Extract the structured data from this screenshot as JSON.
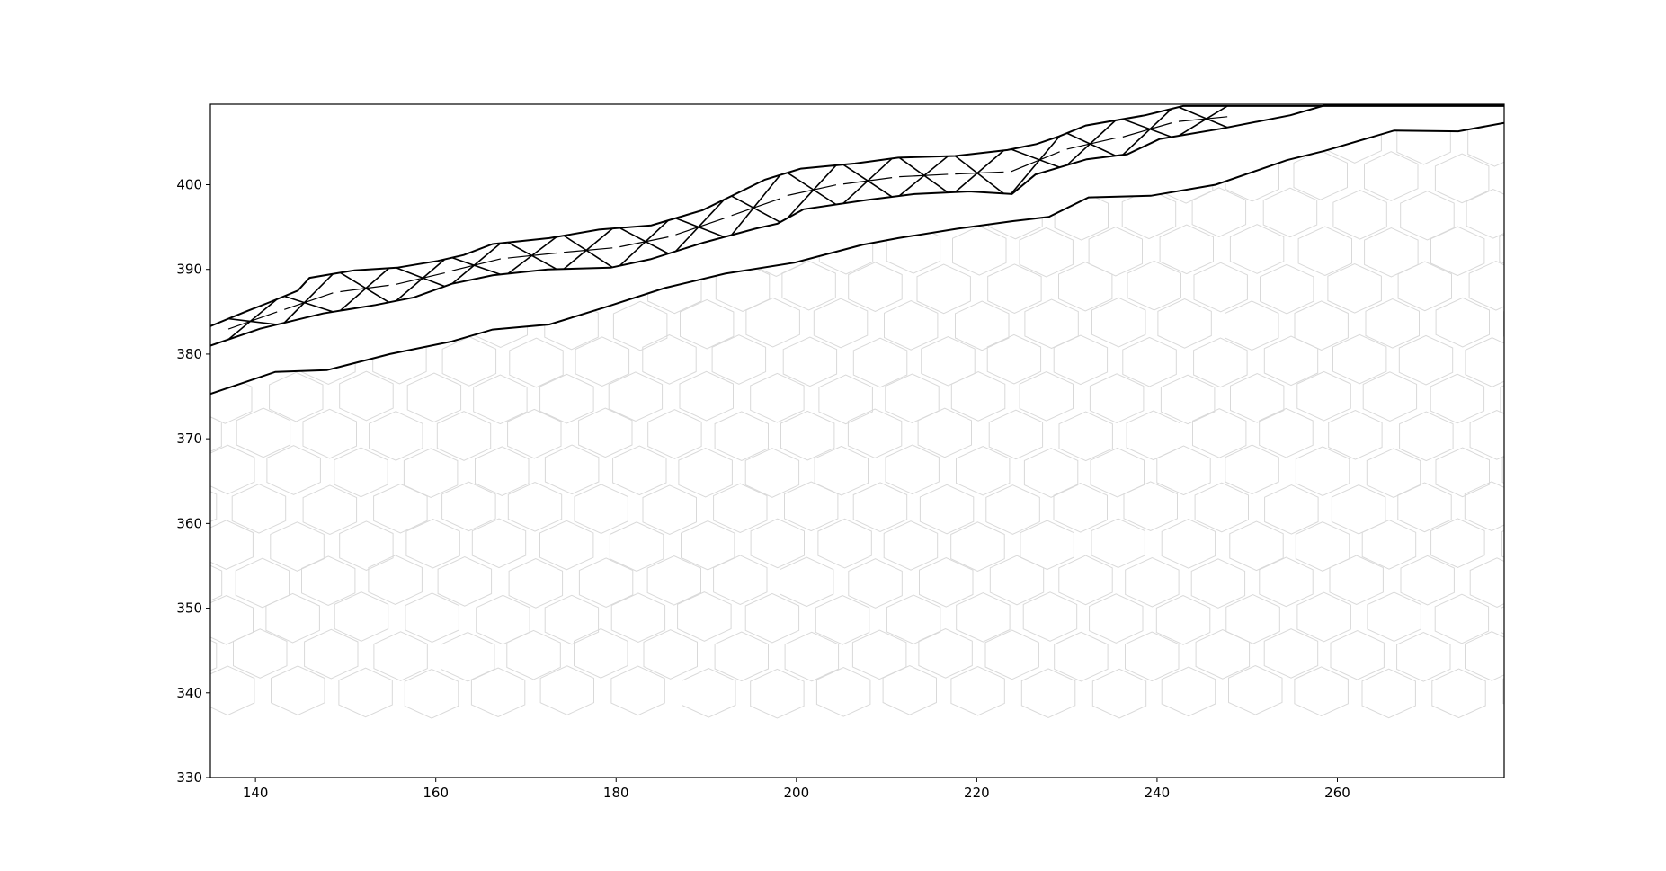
{
  "chart_data": {
    "type": "line",
    "title": "",
    "xlabel": "",
    "ylabel": "",
    "xlim": [
      135,
      278.5
    ],
    "ylim": [
      330,
      409.5
    ],
    "x_ticks": [
      140,
      160,
      180,
      200,
      220,
      240,
      260
    ],
    "y_ticks": [
      330,
      340,
      350,
      360,
      370,
      380,
      390,
      400
    ],
    "x_tick_labels": [
      "140",
      "160",
      "180",
      "200",
      "220",
      "240",
      "260"
    ],
    "y_tick_labels": [
      "330",
      "340",
      "350",
      "360",
      "370",
      "380",
      "390",
      "400"
    ],
    "grid": false,
    "legend": "none",
    "background_mesh": "hexagonal",
    "colors": {
      "lines": "#000000",
      "mesh": "#d9d9d9",
      "axes": "#000000"
    },
    "series": [
      {
        "role": "lower-boundary",
        "x": [
          135,
          142.2,
          147.9,
          154.9,
          161.8,
          166.3,
          172.6,
          178.7,
          185.4,
          192.1,
          199.8,
          207.3,
          211.3,
          217.8,
          224.0,
          228.0,
          232.4,
          239.3,
          246.5,
          254.4,
          258.6,
          266.3,
          273.4,
          278.5
        ],
        "y": [
          375.3,
          377.9,
          378.1,
          380.0,
          381.5,
          382.9,
          383.5,
          385.5,
          387.8,
          389.5,
          390.8,
          392.9,
          393.7,
          394.8,
          395.7,
          396.2,
          398.5,
          398.7,
          400.0,
          402.9,
          404.0,
          406.4,
          406.3,
          407.3
        ]
      },
      {
        "role": "band-bottom",
        "x": [
          135,
          140.5,
          147.5,
          153.3,
          157.6,
          161.8,
          166.3,
          172.4,
          179.4,
          183.8,
          189.8,
          195.4,
          197.9,
          200.8,
          207.8,
          213.1,
          219.2,
          223.9,
          226.5,
          232.2,
          236.7,
          240.3,
          247.0,
          254.8,
          259.0,
          278.5
        ],
        "y": [
          381.0,
          383.0,
          384.8,
          385.8,
          386.7,
          388.3,
          389.3,
          390.0,
          390.2,
          391.2,
          393.2,
          394.8,
          395.4,
          397.1,
          398.2,
          398.9,
          399.2,
          398.9,
          401.2,
          403.0,
          403.6,
          405.4,
          406.6,
          408.2,
          409.5,
          409.5
        ]
      },
      {
        "role": "band-top",
        "x": [
          135,
          139.1,
          141.5,
          144.7,
          146.0,
          151.0,
          155.7,
          160.2,
          163.1,
          166.3,
          172.6,
          178.1,
          183.9,
          189.6,
          196.5,
          200.5,
          206.5,
          211.3,
          217.6,
          223.4,
          226.6,
          229.1,
          232.1,
          238.7,
          242.9,
          278.5
        ],
        "y": [
          383.3,
          385.1,
          386.1,
          387.5,
          389.0,
          389.9,
          390.2,
          391.0,
          391.7,
          393.0,
          393.7,
          394.7,
          395.2,
          397.0,
          400.6,
          401.9,
          402.5,
          403.2,
          403.4,
          404.1,
          404.8,
          405.7,
          407.0,
          408.2,
          409.3,
          409.3
        ]
      }
    ]
  }
}
